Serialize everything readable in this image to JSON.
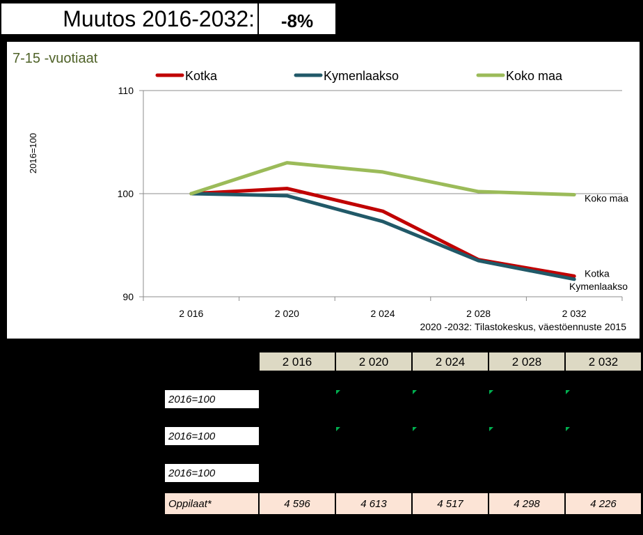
{
  "header": {
    "title": "Muutos 2016-2032:",
    "change_value": "-8%"
  },
  "chart_data": {
    "type": "line",
    "title": "7-15 -vuotiaat",
    "ylabel": "2016=100",
    "xlabel": "",
    "categories": [
      "2 016",
      "2 020",
      "2 024",
      "2 028",
      "2 032"
    ],
    "ylim": [
      90,
      110
    ],
    "yticks": [
      90,
      100,
      110
    ],
    "grid": "horizontal",
    "legend_position": "top",
    "source": "2020 -2032: Tilastokeskus, väestöennuste 2015",
    "series": [
      {
        "name": "Kotka",
        "color": "#c00000",
        "values": [
          100,
          100.5,
          98.3,
          93.6,
          92.0
        ],
        "end_label": "Kotka"
      },
      {
        "name": "Kymenlaakso",
        "color": "#215968",
        "values": [
          100,
          99.8,
          97.3,
          93.5,
          91.7
        ],
        "end_label": "Kymenlaakso"
      },
      {
        "name": "Koko maa",
        "color": "#9bbb59",
        "values": [
          100,
          103.0,
          102.1,
          100.2,
          99.9
        ],
        "end_label": "Koko maa"
      }
    ]
  },
  "table": {
    "years": [
      "2 016",
      "2 020",
      "2 024",
      "2 028",
      "2 032"
    ],
    "row_labels": [
      "2016=100",
      "2016=100",
      "2016=100"
    ],
    "pupils_label": "Oppilaat*",
    "pupils": [
      "4 596",
      "4 613",
      "4 517",
      "4 298",
      "4 226"
    ]
  }
}
